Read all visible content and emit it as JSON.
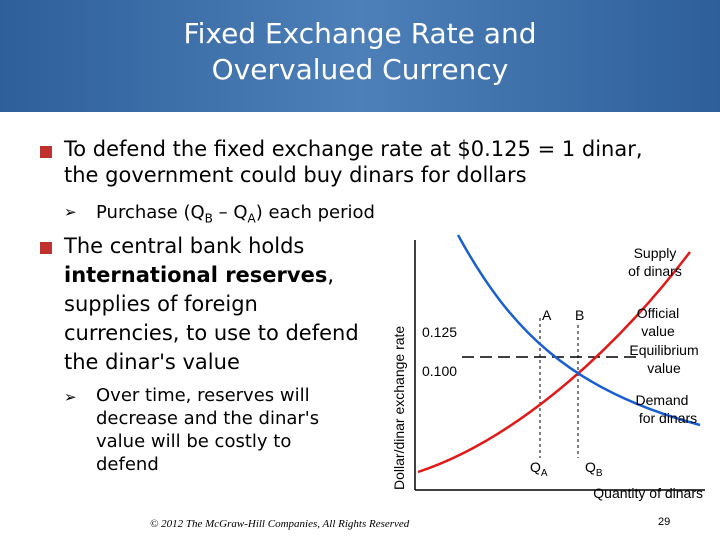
{
  "header": {
    "title": "Fixed Exchange Rate and Overvalued Currency"
  },
  "bullets": [
    {
      "text": "To defend the fixed exchange rate at $0.125 = 1 dinar, the government could buy dinars for dollars",
      "sub": [
        "Purchase (Q",
        "B",
        " – Q",
        "A",
        ") each period"
      ]
    },
    {
      "text_start": "The central bank holds ",
      "bold": "international reserves",
      "text_end": ", supplies of foreign currencies, to use to defend the dinar's value",
      "sub": "Over time, reserves will decrease and the dinar's value will be costly to defend"
    }
  ],
  "diagram": {
    "y_axis_label": "Dollar/dinar exchange rate",
    "x_axis_label": "Quantity of dinars",
    "rate_high": "0.125",
    "rate_low": "0.100",
    "supply_label": [
      "Supply",
      "of dinars"
    ],
    "demand_label": [
      "Demand",
      "for dinars"
    ],
    "official_label": [
      "Official",
      "value"
    ],
    "equilibrium_label": [
      "Equilibrium",
      "value"
    ],
    "point_a": "A",
    "point_b": "B",
    "qa": [
      "Q",
      "A"
    ],
    "qb": [
      "Q",
      "B"
    ]
  },
  "footer": {
    "copyright": "© 2012 The McGraw-Hill Companies, All Rights Reserved",
    "page": "29"
  }
}
